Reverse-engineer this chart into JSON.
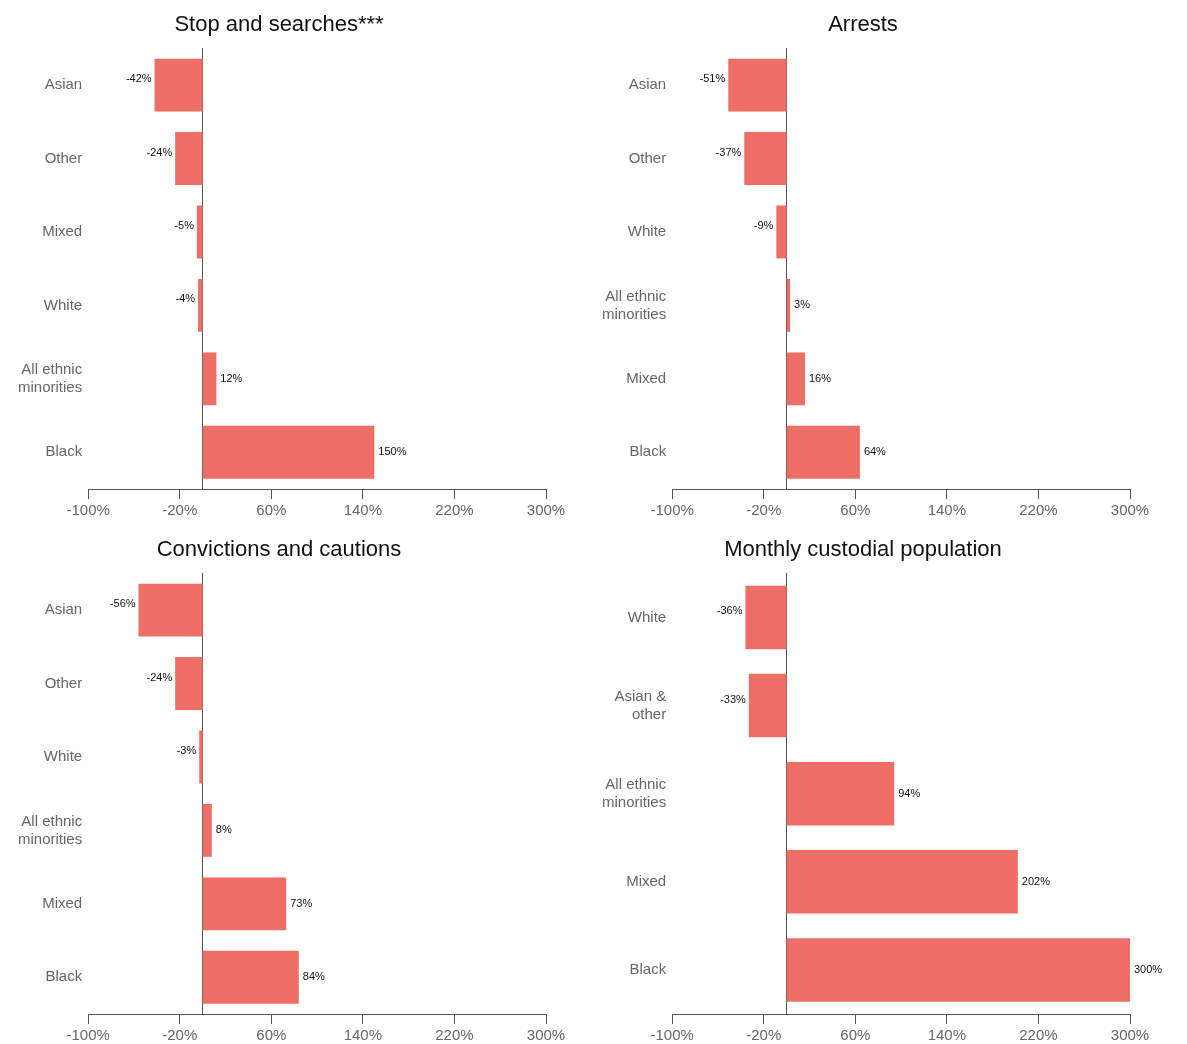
{
  "chart_data": [
    {
      "type": "bar",
      "orientation": "horizontal",
      "title": "Stop and searches***",
      "categories": [
        "Asian",
        "Other",
        "Mixed",
        "White",
        "All ethnic minorities",
        "Black"
      ],
      "values": [
        -42,
        -24,
        -5,
        -4,
        12,
        150
      ],
      "value_labels": [
        "-42%",
        "-24%",
        "-5%",
        "-4%",
        "12%",
        "150%"
      ],
      "color": "#ec6e65",
      "xlim": [
        -100,
        300
      ],
      "xticks": [
        {
          "value": -100,
          "label": "-100%"
        },
        {
          "value": -20,
          "label": "-20%"
        },
        {
          "value": 60,
          "label": "60%"
        },
        {
          "value": 140,
          "label": "140%"
        },
        {
          "value": 220,
          "label": "220%"
        },
        {
          "value": 300,
          "label": "300%"
        }
      ],
      "grid": false,
      "legend": false
    },
    {
      "type": "bar",
      "orientation": "horizontal",
      "title": "Arrests",
      "categories": [
        "Asian",
        "Other",
        "White",
        "All ethnic minorities",
        "Mixed",
        "Black"
      ],
      "values": [
        -51,
        -37,
        -9,
        3,
        16,
        64
      ],
      "value_labels": [
        "-51%",
        "-37%",
        "-9%",
        "3%",
        "16%",
        "64%"
      ],
      "color": "#ec6e65",
      "xlim": [
        -100,
        300
      ],
      "xticks": [
        {
          "value": -100,
          "label": "-100%"
        },
        {
          "value": -20,
          "label": "-20%"
        },
        {
          "value": 60,
          "label": "60%"
        },
        {
          "value": 140,
          "label": "140%"
        },
        {
          "value": 220,
          "label": "220%"
        },
        {
          "value": 300,
          "label": "300%"
        }
      ],
      "grid": false,
      "legend": false
    },
    {
      "type": "bar",
      "orientation": "horizontal",
      "title": "Convictions and cautions",
      "categories": [
        "Asian",
        "Other",
        "White",
        "All ethnic minorities",
        "Mixed",
        "Black"
      ],
      "values": [
        -56,
        -24,
        -3,
        8,
        73,
        84
      ],
      "value_labels": [
        "-56%",
        "-24%",
        "-3%",
        "8%",
        "73%",
        "84%"
      ],
      "color": "#ec6e65",
      "xlim": [
        -100,
        300
      ],
      "xticks": [
        {
          "value": -100,
          "label": "-100%"
        },
        {
          "value": -20,
          "label": "-20%"
        },
        {
          "value": 60,
          "label": "60%"
        },
        {
          "value": 140,
          "label": "140%"
        },
        {
          "value": 220,
          "label": "220%"
        },
        {
          "value": 300,
          "label": "300%"
        }
      ],
      "grid": false,
      "legend": false
    },
    {
      "type": "bar",
      "orientation": "horizontal",
      "title": "Monthly custodial population",
      "categories": [
        "White",
        "Asian & other",
        "All ethnic minorities",
        "Mixed",
        "Black"
      ],
      "values": [
        -36,
        -33,
        94,
        202,
        300
      ],
      "value_labels": [
        "-36%",
        "-33%",
        "94%",
        "202%",
        "300%"
      ],
      "color": "#ec6e65",
      "xlim": [
        -100,
        300
      ],
      "xticks": [
        {
          "value": -100,
          "label": "-100%"
        },
        {
          "value": -20,
          "label": "-20%"
        },
        {
          "value": 60,
          "label": "60%"
        },
        {
          "value": 140,
          "label": "140%"
        },
        {
          "value": 220,
          "label": "220%"
        },
        {
          "value": 300,
          "label": "300%"
        }
      ],
      "grid": false,
      "legend": false
    }
  ]
}
